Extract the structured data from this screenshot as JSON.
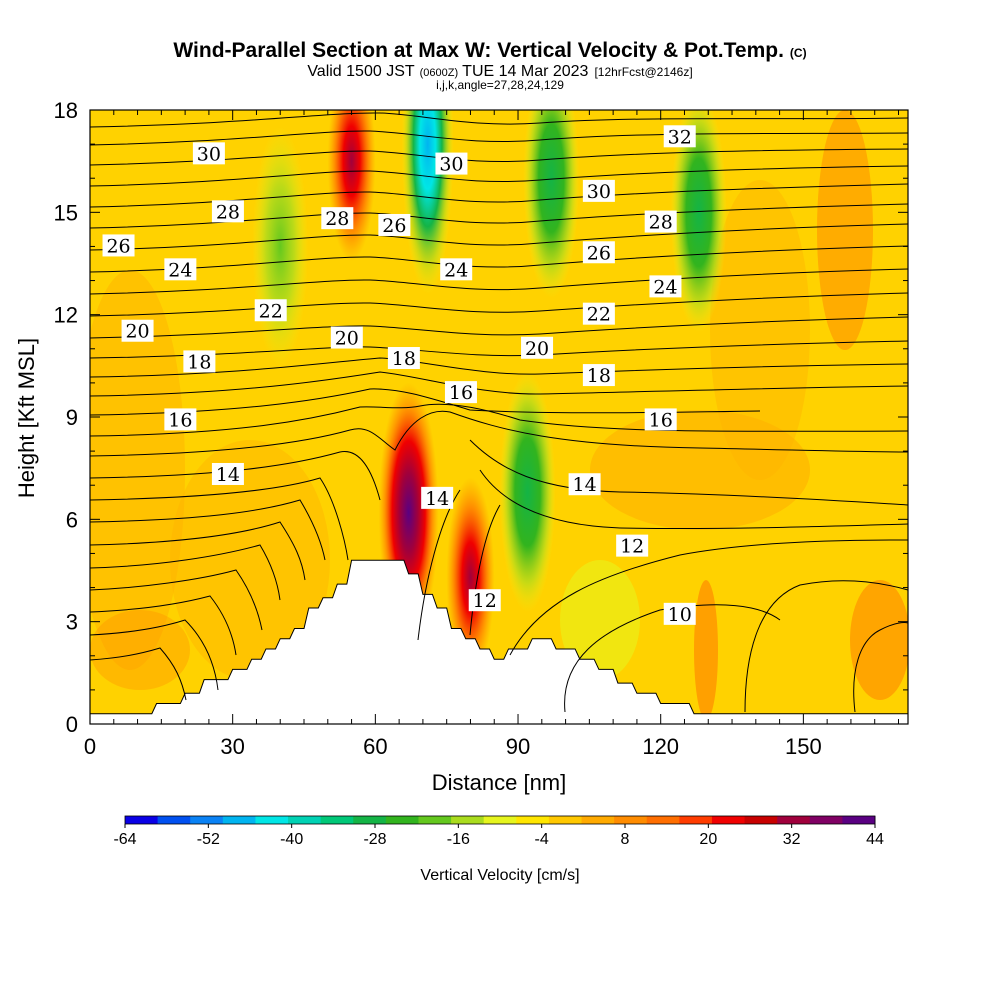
{
  "chart_data": {
    "type": "heatmap",
    "title": "Wind-Parallel Section at Max W: Vertical Velocity & Pot.Temp.",
    "title_mark": "(C)",
    "subtitle_parts": {
      "valid": "Valid 1500 JST",
      "utc": "(0600Z)",
      "date": "TUE 14 Mar 2023",
      "fcst": "[12hrFcst@2146z]"
    },
    "subtitle2": "i,j,k,angle=27,28,24,129",
    "xlabel": "Distance [nm]",
    "ylabel": "Height [Kft MSL]",
    "xlim": [
      0,
      172
    ],
    "ylim": [
      0,
      18
    ],
    "xticks": [
      "0",
      "30",
      "60",
      "90",
      "120",
      "150"
    ],
    "yticks": [
      "0",
      "3",
      "6",
      "9",
      "12",
      "15",
      "18"
    ],
    "colorbar": {
      "label": "Vertical Velocity [cm/s]",
      "range": [
        -64,
        44
      ],
      "tick_labels": [
        "-64",
        "-52",
        "-40",
        "-28",
        "-16",
        "-4",
        "8",
        "20",
        "32",
        "44"
      ],
      "colors": [
        "#0a00e6",
        "#0050f0",
        "#0a82f5",
        "#00b4f0",
        "#00e6e6",
        "#00d2b4",
        "#00c878",
        "#14b446",
        "#32b41e",
        "#64c81e",
        "#aadc1e",
        "#e6f51e",
        "#ffe600",
        "#ffc800",
        "#ffaa00",
        "#ff8c00",
        "#ff6e00",
        "#ff3c00",
        "#f00000",
        "#c80000",
        "#a0003c",
        "#800064",
        "#5a0082"
      ]
    },
    "terrain_kft": [
      [
        0,
        0.3
      ],
      [
        13,
        0.3
      ],
      [
        14,
        0.6
      ],
      [
        19,
        0.6
      ],
      [
        20,
        0.9
      ],
      [
        23,
        0.9
      ],
      [
        24,
        1.3
      ],
      [
        29,
        1.3
      ],
      [
        30,
        1.6
      ],
      [
        33,
        1.6
      ],
      [
        34,
        1.9
      ],
      [
        36,
        1.9
      ],
      [
        37,
        2.2
      ],
      [
        39,
        2.2
      ],
      [
        40,
        2.5
      ],
      [
        42,
        2.5
      ],
      [
        43,
        2.8
      ],
      [
        45,
        2.8
      ],
      [
        46,
        3.4
      ],
      [
        48,
        3.4
      ],
      [
        49,
        3.7
      ],
      [
        51,
        3.7
      ],
      [
        52,
        4.1
      ],
      [
        54,
        4.1
      ],
      [
        55,
        4.8
      ],
      [
        66,
        4.8
      ],
      [
        67,
        4.4
      ],
      [
        69,
        4.4
      ],
      [
        70,
        3.8
      ],
      [
        72,
        3.8
      ],
      [
        73,
        3.4
      ],
      [
        75,
        3.4
      ],
      [
        76,
        2.8
      ],
      [
        78,
        2.8
      ],
      [
        79,
        2.5
      ],
      [
        81,
        2.5
      ],
      [
        82,
        2.2
      ],
      [
        84,
        2.2
      ],
      [
        85,
        1.9
      ],
      [
        87,
        1.9
      ],
      [
        88,
        2.2
      ],
      [
        92,
        2.2
      ],
      [
        93,
        2.5
      ],
      [
        97,
        2.5
      ],
      [
        98,
        2.2
      ],
      [
        102,
        2.2
      ],
      [
        103,
        1.9
      ],
      [
        106,
        1.9
      ],
      [
        107,
        1.6
      ],
      [
        110,
        1.6
      ],
      [
        111,
        1.2
      ],
      [
        114,
        1.2
      ],
      [
        115,
        0.9
      ],
      [
        119,
        0.9
      ],
      [
        120,
        0.6
      ],
      [
        126,
        0.6
      ],
      [
        127,
        0.3
      ],
      [
        172,
        0.3
      ]
    ],
    "w_features": [
      {
        "x": 67,
        "z": 6.2,
        "w": 44
      },
      {
        "x": 80,
        "z": 4.3,
        "w": 28
      },
      {
        "x": 55,
        "z": 16.5,
        "w": 28
      },
      {
        "x": 71,
        "z": 17.0,
        "w": -45
      },
      {
        "x": 92,
        "z": 6.8,
        "w": -26
      },
      {
        "x": 97,
        "z": 16.0,
        "w": -22
      },
      {
        "x": 128,
        "z": 15.0,
        "w": -22
      },
      {
        "x": 40,
        "z": 14.0,
        "w": -16
      }
    ],
    "contour_labels": [
      {
        "value": "30",
        "x": 25,
        "z": 16.7
      },
      {
        "value": "28",
        "x": 29,
        "z": 15.0
      },
      {
        "value": "26",
        "x": 6,
        "z": 14.0
      },
      {
        "value": "24",
        "x": 19,
        "z": 13.3
      },
      {
        "value": "22",
        "x": 38,
        "z": 12.1
      },
      {
        "value": "20",
        "x": 10,
        "z": 11.5
      },
      {
        "value": "18",
        "x": 23,
        "z": 10.6
      },
      {
        "value": "16",
        "x": 19,
        "z": 8.9
      },
      {
        "value": "14",
        "x": 29,
        "z": 7.3
      },
      {
        "value": "28",
        "x": 52,
        "z": 14.8
      },
      {
        "value": "26",
        "x": 64,
        "z": 14.6
      },
      {
        "value": "20",
        "x": 54,
        "z": 11.3
      },
      {
        "value": "18",
        "x": 66,
        "z": 10.7
      },
      {
        "value": "30",
        "x": 76,
        "z": 16.4
      },
      {
        "value": "24",
        "x": 77,
        "z": 13.3
      },
      {
        "value": "16",
        "x": 78,
        "z": 9.7
      },
      {
        "value": "14",
        "x": 73,
        "z": 6.6
      },
      {
        "value": "12",
        "x": 83,
        "z": 3.6
      },
      {
        "value": "20",
        "x": 94,
        "z": 11.0
      },
      {
        "value": "30",
        "x": 107,
        "z": 15.6
      },
      {
        "value": "26",
        "x": 107,
        "z": 13.8
      },
      {
        "value": "22",
        "x": 107,
        "z": 12.0
      },
      {
        "value": "18",
        "x": 107,
        "z": 10.2
      },
      {
        "value": "14",
        "x": 104,
        "z": 7.0
      },
      {
        "value": "32",
        "x": 124,
        "z": 17.2
      },
      {
        "value": "28",
        "x": 120,
        "z": 14.7
      },
      {
        "value": "24",
        "x": 121,
        "z": 12.8
      },
      {
        "value": "16",
        "x": 120,
        "z": 8.9
      },
      {
        "value": "12",
        "x": 114,
        "z": 5.2
      },
      {
        "value": "10",
        "x": 124,
        "z": 3.2
      }
    ]
  }
}
